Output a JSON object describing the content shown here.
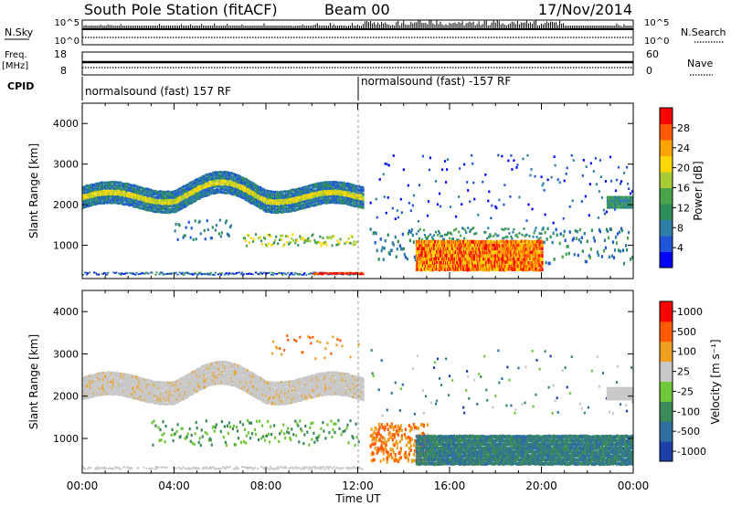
{
  "header": {
    "station": "South Pole Station (fitACF)",
    "beam": "Beam 00",
    "date": "17/Nov/2014"
  },
  "ancillary": {
    "nsky_label": "N.Sky",
    "nsky_ticks": [
      "10^5",
      "10^0"
    ],
    "nsearch_label": "N.Search",
    "nsearch_ticks": [
      "10^5",
      "10^0"
    ],
    "freq_label": "Freq.",
    "freq_unit": "[MHz]",
    "freq_ticks": [
      "18",
      "8"
    ],
    "nave_label": "Nave",
    "nave_ticks": [
      "60",
      "0"
    ],
    "cpid_label": "CPID",
    "cpid_segments": [
      "normalsound (fast) 157 RF",
      "normalsound (fast) -157 RF"
    ]
  },
  "chart_data": [
    {
      "type": "heatmap",
      "panel": "power",
      "ylabel": "Slant Range [km]",
      "ylim": [
        180,
        4500
      ],
      "yticks": [
        1000,
        2000,
        3000,
        4000
      ],
      "xlim_hours": [
        0,
        24
      ],
      "xticks": [
        "00:00",
        "04:00",
        "08:00",
        "12:00",
        "16:00",
        "20:00",
        "00:00"
      ],
      "colorbar": {
        "label": "Power [dB]",
        "range": [
          0,
          32
        ],
        "ticks": [
          "4",
          "8",
          "12",
          "16",
          "20",
          "24",
          "28"
        ],
        "colors": [
          "#0000ff",
          "#1f55d8",
          "#2f7fa8",
          "#2f8f5a",
          "#4aa44a",
          "#a8cc33",
          "#ffd700",
          "#ffa500",
          "#ff5a00",
          "#ff0000"
        ]
      },
      "features": [
        {
          "t_start": 0.0,
          "t_end": 12.2,
          "range_km": [
            1800,
            2500
          ],
          "level_db": 16
        },
        {
          "t_start": 14.5,
          "t_end": 20.0,
          "range_km": [
            350,
            1100
          ],
          "level_db": 26
        },
        {
          "t_start": 21.0,
          "t_end": 24.0,
          "range_km": [
            1900,
            2300
          ],
          "level_db": 14
        }
      ]
    },
    {
      "type": "heatmap",
      "panel": "velocity",
      "ylabel": "Slant Range [km]",
      "ylim": [
        180,
        4500
      ],
      "yticks": [
        1000,
        2000,
        3000,
        4000
      ],
      "xlim_hours": [
        0,
        24
      ],
      "xticks": [
        "00:00",
        "04:00",
        "08:00",
        "12:00",
        "16:00",
        "20:00",
        "00:00"
      ],
      "xlabel": "Time UT",
      "colorbar": {
        "label": "Velocity [m s⁻¹]",
        "ticks": [
          "1000",
          "500",
          "100",
          "25",
          "-25",
          "-100",
          "-500",
          "-1000"
        ],
        "colors": [
          "#1f3fa8",
          "#2f6f9f",
          "#3a8a5a",
          "#6fc83a",
          "#c8c8c8",
          "#f0a020",
          "#ff5a00",
          "#ff0000"
        ]
      },
      "features": [
        {
          "t_start": 0.0,
          "t_end": 12.2,
          "range_km": [
            1800,
            2500
          ],
          "velocity_ms": 0
        },
        {
          "t_start": 14.5,
          "t_end": 24.0,
          "range_km": [
            350,
            1100
          ],
          "velocity_ms": 300
        }
      ]
    }
  ]
}
